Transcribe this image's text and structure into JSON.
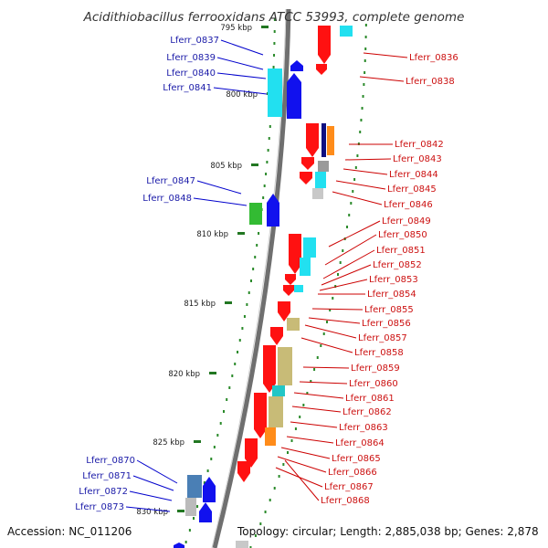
{
  "title": "Acidithiobacillus ferrooxidans ATCC 53993, complete genome",
  "footer": {
    "accession": "Accession: NC_011206",
    "stats": "Topology: circular; Length: 2,885,038 bp; Genes: 2,878"
  },
  "ticks": [
    "795 kbp",
    "800 kbp",
    "805 kbp",
    "810 kbp",
    "815 kbp",
    "820 kbp",
    "825 kbp",
    "830 kbp"
  ],
  "genes_reverse": [
    "Lferr_0837",
    "Lferr_0839",
    "Lferr_0840",
    "Lferr_0841",
    "Lferr_0847",
    "Lferr_0848",
    "Lferr_0870",
    "Lferr_0871",
    "Lferr_0872",
    "Lferr_0873"
  ],
  "genes_forward": [
    "Lferr_0836",
    "Lferr_0838",
    "Lferr_0842",
    "Lferr_0843",
    "Lferr_0844",
    "Lferr_0845",
    "Lferr_0846",
    "Lferr_0849",
    "Lferr_0850",
    "Lferr_0851",
    "Lferr_0852",
    "Lferr_0853",
    "Lferr_0854",
    "Lferr_0855",
    "Lferr_0856",
    "Lferr_0857",
    "Lferr_0858",
    "Lferr_0859",
    "Lferr_0860",
    "Lferr_0861",
    "Lferr_0862",
    "Lferr_0863",
    "Lferr_0864",
    "Lferr_0865",
    "Lferr_0866",
    "Lferr_0867",
    "Lferr_0868"
  ],
  "colors": {
    "reverse_label": "#1a1aa8",
    "forward_label": "#cc1111",
    "forward_gene": "#ff1111",
    "reverse_gene": "#1111ee",
    "cyan": "#22e0f0",
    "green": "#33bb33",
    "olive": "#c8bb77",
    "orange": "#ff8c1a",
    "navy": "#101080",
    "grey": "#9a9a9a",
    "steel": "#4a7fb5",
    "backbone": "#777777",
    "dots": "#2a8a2a"
  }
}
